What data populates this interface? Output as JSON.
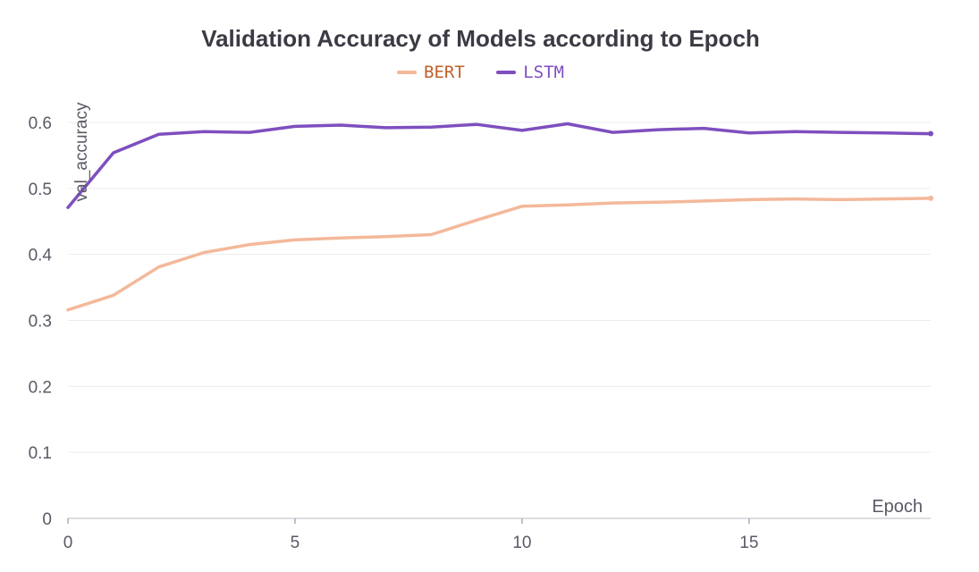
{
  "chart_data": {
    "type": "line",
    "title": "Validation Accuracy of Models according to Epoch",
    "xlabel": "Epoch",
    "ylabel": "val_accuracy",
    "xlim": [
      0,
      19
    ],
    "ylim": [
      0,
      0.62
    ],
    "xticks": [
      0,
      5,
      10,
      15
    ],
    "yticks": [
      0,
      0.1,
      0.2,
      0.3,
      0.4,
      0.5,
      0.6
    ],
    "ytick_labels": [
      "0",
      "0.1",
      "0.2",
      "0.3",
      "0.4",
      "0.5",
      "0.6"
    ],
    "grid": true,
    "legend_position": "top-center",
    "x": [
      0,
      1,
      2,
      3,
      4,
      5,
      6,
      7,
      8,
      9,
      10,
      11,
      12,
      13,
      14,
      15,
      16,
      17,
      18,
      19
    ],
    "series": [
      {
        "name": "BERT",
        "color": "#f4b89a",
        "label_color": "#c0602a",
        "values": [
          0.316,
          0.338,
          0.381,
          0.403,
          0.415,
          0.422,
          0.425,
          0.427,
          0.43,
          0.452,
          0.473,
          0.475,
          0.478,
          0.479,
          0.481,
          0.483,
          0.484,
          0.483,
          0.484,
          0.485
        ]
      },
      {
        "name": "LSTM",
        "color": "#7e4fbf",
        "label_color": "#7e4fbf",
        "values": [
          0.471,
          0.554,
          0.582,
          0.586,
          0.585,
          0.594,
          0.596,
          0.592,
          0.593,
          0.597,
          0.588,
          0.598,
          0.585,
          0.589,
          0.591,
          0.584,
          0.586,
          0.585,
          0.584,
          0.583
        ]
      }
    ]
  }
}
